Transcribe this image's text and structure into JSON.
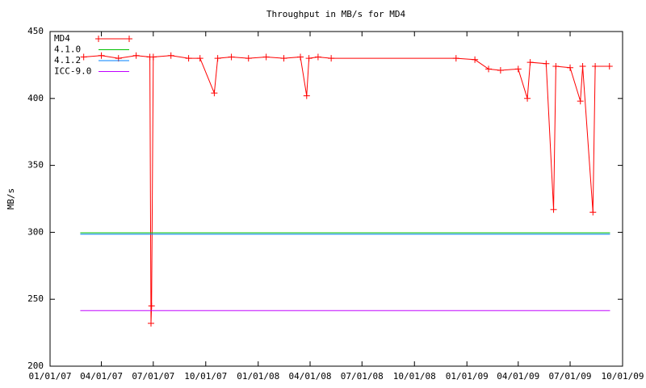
{
  "chart_data": {
    "type": "line",
    "title": "Throughput in MB/s for MD4",
    "y_label": "MB/s",
    "xlim": [
      "01/01/07",
      "10/01/09"
    ],
    "xticks": [
      "01/01/07",
      "04/01/07",
      "07/01/07",
      "10/01/07",
      "01/01/08",
      "04/01/08",
      "07/01/08",
      "10/01/08",
      "01/01/09",
      "04/01/09",
      "07/01/09",
      "10/01/09"
    ],
    "ylim": [
      200,
      450
    ],
    "yticks": [
      200,
      250,
      300,
      350,
      400,
      450
    ],
    "series": [
      {
        "name": "MD4",
        "color": "#ff0000",
        "markers": true,
        "x": [
          "03/01/07",
          "04/01/07",
          "05/01/07",
          "06/01/07",
          "06/25/07",
          "06/27/07",
          "06/28/07",
          "07/01/07",
          "08/01/07",
          "09/01/07",
          "09/21/07",
          "10/16/07",
          "10/22/07",
          "11/15/07",
          "12/15/07",
          "01/15/08",
          "02/15/08",
          "03/15/08",
          "03/26/08",
          "03/30/08",
          "04/15/08",
          "05/08/08",
          "12/13/08",
          "01/15/09",
          "02/08/09",
          "03/01/09",
          "04/01/09",
          "04/17/09",
          "04/22/09",
          "05/20/09",
          "06/02/09",
          "06/06/09",
          "07/01/09",
          "07/19/09",
          "07/23/09",
          "08/10/09",
          "08/14/09",
          "09/08/09"
        ],
        "values": [
          431,
          432,
          430,
          432,
          431,
          232,
          245,
          431,
          432,
          430,
          430,
          404,
          430,
          431,
          430,
          431,
          430,
          431,
          402,
          430,
          431,
          430,
          430,
          429,
          422,
          421,
          422,
          400,
          427,
          426,
          317,
          424,
          423,
          398,
          424,
          315,
          424,
          424
        ]
      },
      {
        "name": "4.1.0",
        "color": "#00c000",
        "x": [
          "02/23/07",
          "09/09/09"
        ],
        "values": [
          299.6,
          299.6
        ]
      },
      {
        "name": "4.1.2",
        "color": "#0080ff",
        "x": [
          "02/23/07",
          "09/09/09"
        ],
        "values": [
          298.6,
          298.6
        ]
      },
      {
        "name": "ICC-9.0",
        "color": "#c000ff",
        "x": [
          "02/23/07",
          "09/09/09"
        ],
        "values": [
          241.5,
          241.5
        ]
      }
    ]
  }
}
